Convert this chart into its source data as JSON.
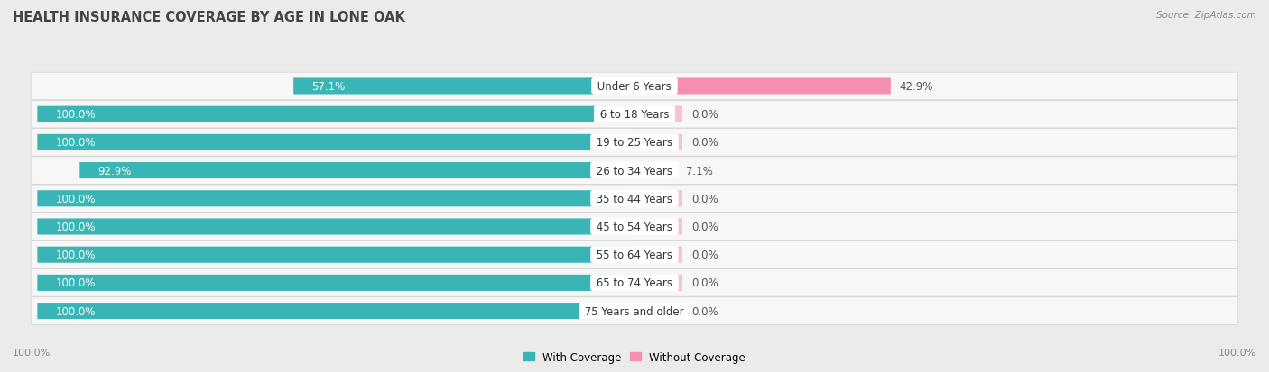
{
  "title": "HEALTH INSURANCE COVERAGE BY AGE IN LONE OAK",
  "source": "Source: ZipAtlas.com",
  "categories": [
    "Under 6 Years",
    "6 to 18 Years",
    "19 to 25 Years",
    "26 to 34 Years",
    "35 to 44 Years",
    "45 to 54 Years",
    "55 to 64 Years",
    "65 to 74 Years",
    "75 Years and older"
  ],
  "with_coverage": [
    57.1,
    100.0,
    100.0,
    92.9,
    100.0,
    100.0,
    100.0,
    100.0,
    100.0
  ],
  "without_coverage": [
    42.9,
    0.0,
    0.0,
    7.1,
    0.0,
    0.0,
    0.0,
    0.0,
    0.0
  ],
  "color_with": "#3ab5b5",
  "color_without": "#f48fb1",
  "color_without_zero": "#f8c0d4",
  "bg_color": "#ebebeb",
  "row_bg": "#f7f7f7",
  "title_fontsize": 10.5,
  "cat_fontsize": 8.5,
  "val_fontsize": 8.5,
  "legend_label_with": "With Coverage",
  "legend_label_without": "Without Coverage",
  "axis_label_left": "100.0%",
  "axis_label_right": "100.0%",
  "min_stub": 8
}
